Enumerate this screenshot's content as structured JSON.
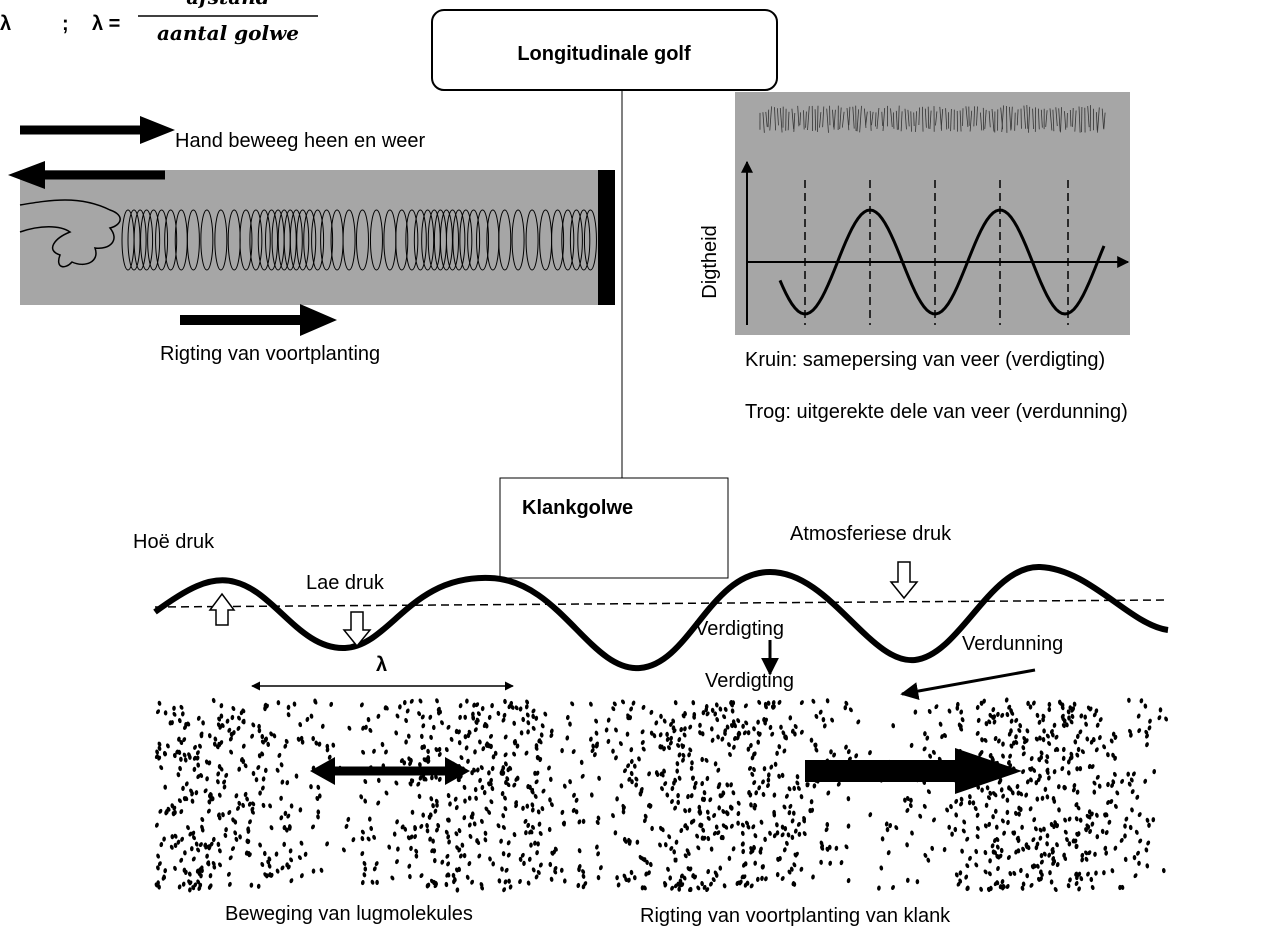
{
  "formula": {
    "symbol": "λ",
    "separator": ";",
    "lhs": "λ =",
    "numerator": "afstand",
    "denominator": "aantal golwe"
  },
  "title": "Longitudinale golf",
  "spring": {
    "hand_label": "Hand beweeg heen en weer",
    "direction_label": "Rigting van voortplanting"
  },
  "graph": {
    "y_axis_label": "Digtheid",
    "crest": "Kruin: samepersing van veer (verdigting)",
    "trough": "Trog: uitgerekte dele van veer (verdunning)"
  },
  "sound": {
    "title": "Klankgolwe",
    "high_pressure": "Hoë druk",
    "low_pressure": "Lae druk",
    "atmospheric_pressure": "Atmosferiese druk",
    "compression_1": "Verdigting",
    "compression_2": "Verdigting",
    "rarefaction": "Verdunning",
    "wavelength": "λ",
    "molecule_motion": "Beweging van lugmolekules",
    "sound_direction": "Rigting van voortplanting van klank"
  }
}
